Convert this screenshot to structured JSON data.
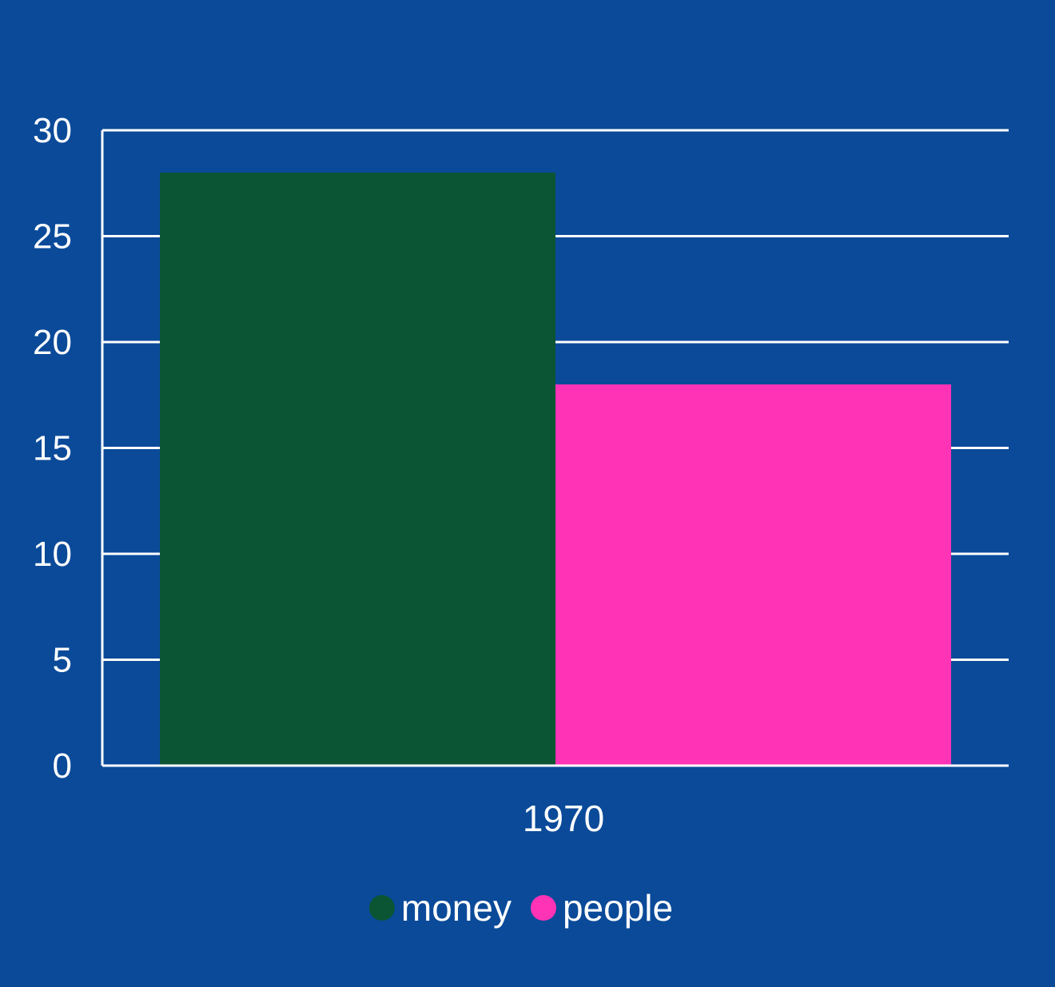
{
  "chart_data": {
    "type": "bar",
    "categories": [
      "1970"
    ],
    "series": [
      {
        "name": "money",
        "values": [
          28
        ],
        "color": "#0b5535"
      },
      {
        "name": "people",
        "values": [
          18
        ],
        "color": "#ff33b5"
      }
    ],
    "title": "",
    "xlabel": "",
    "ylabel": "",
    "ylim": [
      0,
      30
    ],
    "yticks": [
      "0",
      "5",
      "10",
      "15",
      "20",
      "25",
      "30"
    ],
    "grid": true,
    "legend": "bottom-center",
    "background": "#0a4a99",
    "axis_color": "#ffffff"
  }
}
